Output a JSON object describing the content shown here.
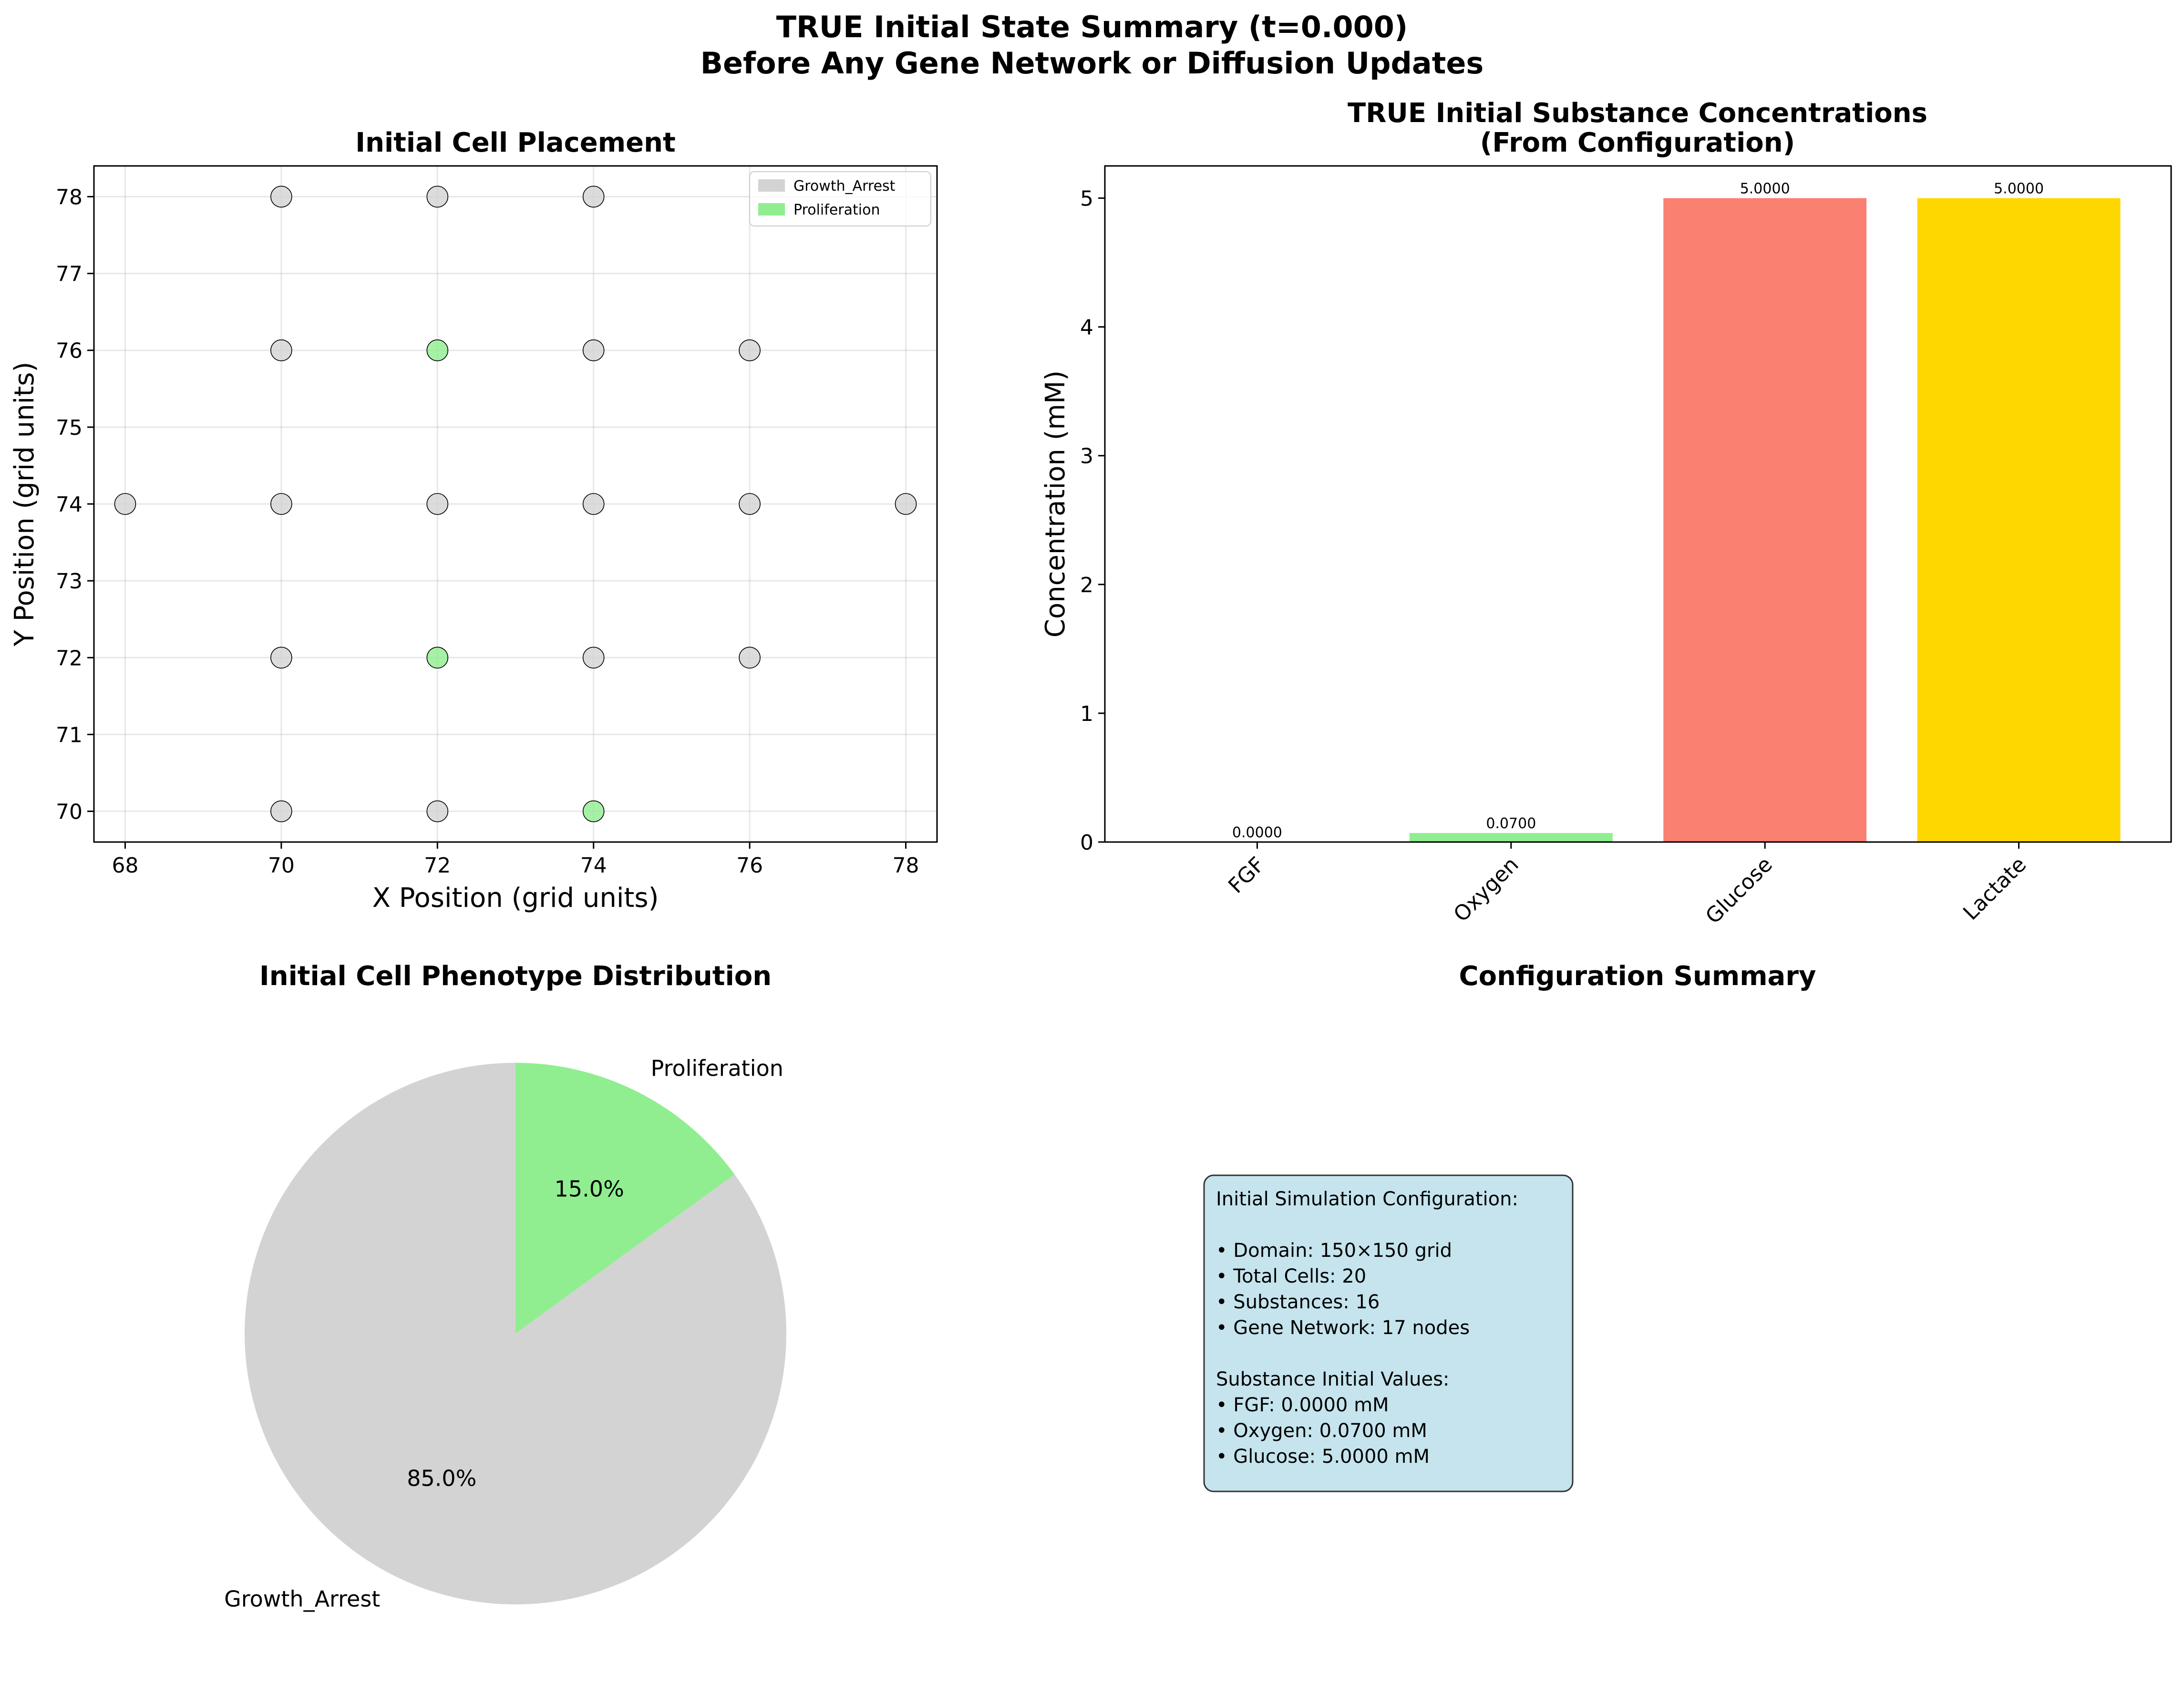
{
  "suptitle": {
    "line1": "TRUE Initial State Summary (t=0.000)",
    "line2": "Before Any Gene Network or Diffusion Updates"
  },
  "colors": {
    "Growth_Arrest": "#d3d3d3",
    "Proliferation": "#90ee90",
    "FGF": "#add8e6",
    "Oxygen": "#90ee90",
    "Glucose": "#fa8072",
    "Lactate": "#ffd700",
    "config_box": "#add8e6"
  },
  "chart_data": [
    {
      "type": "scatter",
      "title": "Initial Cell Placement",
      "xlabel": "X Position (grid units)",
      "ylabel": "Y Position (grid units)",
      "xlim": [
        67.6,
        78.4
      ],
      "ylim": [
        69.6,
        78.4
      ],
      "xticks": [
        68,
        70,
        72,
        74,
        76,
        78
      ],
      "yticks": [
        70,
        71,
        72,
        73,
        74,
        75,
        76,
        77,
        78
      ],
      "grid": true,
      "legend_position": "top-right",
      "series": [
        {
          "name": "Growth_Arrest",
          "points": [
            [
              70,
              78
            ],
            [
              72,
              78
            ],
            [
              74,
              78
            ],
            [
              70,
              76
            ],
            [
              74,
              76
            ],
            [
              76,
              76
            ],
            [
              68,
              74
            ],
            [
              70,
              74
            ],
            [
              72,
              74
            ],
            [
              74,
              74
            ],
            [
              76,
              74
            ],
            [
              78,
              74
            ],
            [
              70,
              72
            ],
            [
              74,
              72
            ],
            [
              76,
              72
            ],
            [
              70,
              70
            ],
            [
              72,
              70
            ]
          ]
        },
        {
          "name": "Proliferation",
          "points": [
            [
              72,
              76
            ],
            [
              72,
              72
            ],
            [
              74,
              70
            ]
          ]
        }
      ]
    },
    {
      "type": "bar",
      "title_line1": "TRUE Initial Substance Concentrations",
      "title_line2": "(From Configuration)",
      "ylabel": "Concentration (mM)",
      "categories": [
        "FGF",
        "Oxygen",
        "Glucose",
        "Lactate"
      ],
      "values": [
        0.0,
        0.07,
        5.0,
        5.0
      ],
      "value_labels": [
        "0.0000",
        "0.0700",
        "5.0000",
        "5.0000"
      ],
      "ylim": [
        0,
        5.25
      ],
      "yticks": [
        0,
        1,
        2,
        3,
        4,
        5
      ]
    },
    {
      "type": "pie",
      "title": "Initial Cell Phenotype Distribution",
      "slices": [
        {
          "label": "Proliferation",
          "value": 15.0,
          "pct_label": "15.0%"
        },
        {
          "label": "Growth_Arrest",
          "value": 85.0,
          "pct_label": "85.0%"
        }
      ]
    }
  ],
  "config_summary": {
    "title": "Configuration Summary",
    "lines": [
      "Initial Simulation Configuration:",
      "",
      "• Domain: 150×150 grid",
      "• Total Cells: 20",
      "• Substances: 16",
      "• Gene Network: 17 nodes",
      "",
      "Substance Initial Values:",
      "• FGF: 0.0000 mM",
      "• Oxygen: 0.0700 mM",
      "• Glucose: 5.0000 mM"
    ]
  }
}
